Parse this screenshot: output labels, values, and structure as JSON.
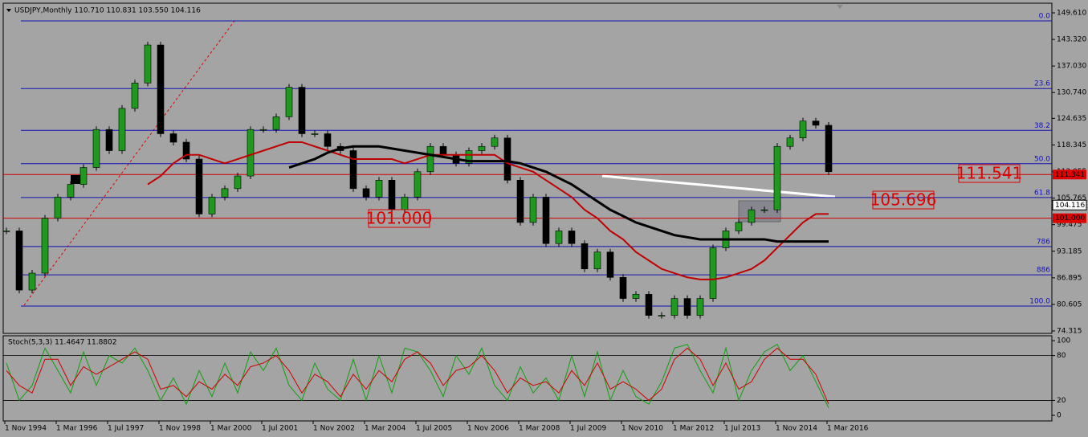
{
  "chart_data": [
    {
      "type": "candlestick",
      "title": "USDJPY,Monthly  110.710 110.831 103.550 104.116",
      "categories": [
        "1 Nov 1994",
        null,
        null,
        null,
        "1 Mar 1996",
        null,
        null,
        null,
        "1 Jul 1997",
        null,
        null,
        null,
        "1 Nov 1998",
        null,
        null,
        null,
        "1 Mar 2000",
        null,
        null,
        null,
        "1 Jul 2001",
        null,
        null,
        null,
        "1 Nov 2002",
        null,
        null,
        null,
        "1 Mar 2004",
        null,
        null,
        null,
        "1 Jul 2005",
        null,
        null,
        null,
        "1 Nov 2006",
        null,
        null,
        null,
        "1 Mar 2008",
        null,
        null,
        null,
        "1 Jul 2009",
        null,
        null,
        null,
        "1 Nov 2010",
        null,
        null,
        null,
        "1 Mar 2012",
        null,
        null,
        null,
        "1 Jul 2013",
        null,
        null,
        null,
        "1 Nov 2014",
        null,
        null,
        null,
        "1 Mar 2016"
      ],
      "values": [
        98,
        84,
        88,
        101,
        106,
        109,
        113,
        122,
        117,
        127,
        133,
        142,
        121,
        119,
        115,
        102,
        106,
        108,
        111,
        122,
        122,
        125,
        132,
        121,
        121,
        118,
        117,
        108,
        106,
        110,
        103,
        106,
        112,
        118,
        116,
        114,
        117,
        118,
        120,
        110,
        100,
        106,
        95,
        98,
        95,
        89,
        93,
        87,
        82,
        83,
        78,
        78,
        82,
        78,
        82,
        94,
        98,
        100,
        103,
        103,
        118,
        120,
        124,
        123,
        112
      ],
      "up_color": "#1e9a1e",
      "down_color": "#000000",
      "lines": [
        {
          "color": "#c00000",
          "values": [
            null,
            null,
            null,
            null,
            null,
            null,
            null,
            null,
            null,
            null,
            null,
            109,
            111,
            114,
            116,
            116,
            115,
            114,
            115,
            116,
            117,
            118,
            119,
            119,
            118,
            117,
            116,
            115,
            115,
            115,
            115,
            114,
            115,
            116,
            116,
            116,
            116,
            116,
            116,
            114,
            113,
            112,
            110,
            108,
            106,
            103,
            101,
            98,
            96,
            93,
            91,
            89,
            88,
            87,
            86.5,
            86.5,
            87,
            88,
            89,
            91,
            94,
            97,
            100,
            102,
            102
          ]
        },
        {
          "color": "#000000",
          "values": [
            null,
            null,
            null,
            null,
            null,
            null,
            null,
            null,
            null,
            null,
            null,
            null,
            null,
            null,
            null,
            null,
            null,
            null,
            null,
            null,
            null,
            null,
            113,
            114,
            115,
            116.5,
            117.5,
            118,
            118,
            118,
            117.5,
            117,
            116.5,
            116,
            115.5,
            115,
            114.5,
            114.5,
            114.5,
            114.5,
            114,
            113,
            112,
            110.5,
            109,
            107,
            105,
            103,
            101.5,
            100,
            99,
            98,
            97,
            96.5,
            96,
            96,
            96,
            96,
            96,
            96,
            95.5,
            95.5,
            95.5,
            95.5,
            95.5
          ]
        }
      ],
      "ylim": [
        73.745,
        151.7
      ],
      "yticks": [
        {
          "value": 149.61,
          "label": "149.610"
        },
        {
          "value": 143.32,
          "label": "143.320"
        },
        {
          "value": 137.03,
          "label": "137.030"
        },
        {
          "value": 130.74,
          "label": "130.740"
        },
        124.635,
        118.345,
        112.055,
        105.765,
        99.475,
        93.185,
        86.895,
        80.605,
        74.315
      ],
      "levels": [
        {
          "label": "0.0",
          "value": 147.7
        },
        {
          "label": "23.6",
          "value": 131.7
        },
        {
          "label": "38.2",
          "value": 121.8
        },
        {
          "label": "50.0",
          "value": 113.9
        },
        {
          "label": "61.8",
          "value": 105.9
        },
        {
          "label": "786",
          "value": 94.3
        },
        {
          "label": "886",
          "value": 87.6
        },
        {
          "label": "100.0",
          "value": 80.2
        }
      ],
      "price_lines": [
        {
          "value": 111.341,
          "label": "111.341"
        },
        {
          "value": 101.0,
          "label": "101.000"
        }
      ],
      "last_price": 104.116,
      "annotations": [
        "111.541",
        "105.696",
        "101.000"
      ]
    },
    {
      "type": "line",
      "title": "Stoch(5,3,3) 11.4647 11.8802",
      "series": [
        {
          "color": "#10a010",
          "values": [
            70,
            20,
            40,
            90,
            60,
            30,
            85,
            40,
            80,
            70,
            90,
            60,
            20,
            50,
            15,
            60,
            25,
            70,
            30,
            85,
            60,
            90,
            40,
            20,
            70,
            35,
            20,
            75,
            20,
            80,
            30,
            90,
            85,
            60,
            25,
            80,
            55,
            90,
            40,
            20,
            65,
            30,
            50,
            20,
            80,
            25,
            85,
            20,
            60,
            25,
            15,
            45,
            90,
            95,
            60,
            30,
            90,
            20,
            60,
            85,
            95,
            60,
            80,
            45,
            10
          ]
        },
        {
          "color": "#d00000",
          "values": [
            60,
            40,
            30,
            75,
            75,
            40,
            65,
            55,
            65,
            75,
            85,
            75,
            35,
            40,
            25,
            45,
            35,
            55,
            40,
            65,
            70,
            80,
            60,
            30,
            55,
            45,
            25,
            55,
            35,
            60,
            45,
            75,
            85,
            70,
            40,
            60,
            65,
            80,
            60,
            30,
            50,
            40,
            45,
            30,
            60,
            40,
            70,
            35,
            45,
            35,
            20,
            35,
            75,
            90,
            75,
            40,
            70,
            35,
            45,
            75,
            90,
            75,
            75,
            55,
            15
          ]
        }
      ],
      "ylim": [
        -7.5,
        106.5
      ],
      "yticks": [
        100,
        80,
        20,
        0
      ],
      "levels": [
        80,
        20
      ]
    }
  ]
}
